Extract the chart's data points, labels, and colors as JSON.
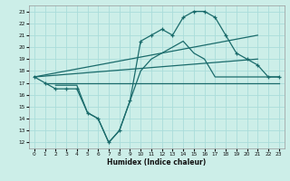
{
  "xlabel": "Humidex (Indice chaleur)",
  "bg_color": "#cceee8",
  "grid_color": "#aaddda",
  "line_color": "#1a6b6b",
  "xlim": [
    -0.5,
    23.5
  ],
  "ylim": [
    11.5,
    23.5
  ],
  "xticks": [
    0,
    1,
    2,
    3,
    4,
    5,
    6,
    7,
    8,
    9,
    10,
    11,
    12,
    13,
    14,
    15,
    16,
    17,
    18,
    19,
    20,
    21,
    22,
    23
  ],
  "yticks": [
    12,
    13,
    14,
    15,
    16,
    17,
    18,
    19,
    20,
    21,
    22,
    23
  ],
  "series_zigzag": {
    "x": [
      0,
      1,
      2,
      3,
      4,
      5,
      6,
      7,
      8,
      9,
      10,
      11,
      12,
      13,
      14,
      15,
      16,
      17,
      18,
      19,
      20,
      21,
      22,
      23
    ],
    "y": [
      17.5,
      17.0,
      16.5,
      16.5,
      16.5,
      14.5,
      14.0,
      12.0,
      13.0,
      15.5,
      20.5,
      21.0,
      21.5,
      21.0,
      22.5,
      23.0,
      23.0,
      22.5,
      21.0,
      19.5,
      19.0,
      18.5,
      17.5,
      17.5
    ]
  },
  "series_lin_steep": {
    "x": [
      0,
      21
    ],
    "y": [
      17.5,
      21.0
    ]
  },
  "series_lin_mid": {
    "x": [
      0,
      21
    ],
    "y": [
      17.5,
      19.0
    ]
  },
  "series_flat": {
    "x": [
      1,
      23
    ],
    "y": [
      17.0,
      17.0
    ]
  },
  "series_curve": {
    "x": [
      2,
      3,
      4,
      5,
      6,
      7,
      8,
      9,
      10,
      11,
      12,
      13,
      14,
      15,
      16,
      17,
      18,
      19,
      20,
      21,
      22,
      23
    ],
    "y": [
      16.8,
      16.8,
      16.8,
      14.5,
      14.0,
      12.0,
      13.0,
      15.5,
      18.0,
      19.0,
      19.5,
      20.0,
      20.5,
      19.5,
      19.0,
      17.5,
      17.5,
      17.5,
      17.5,
      17.5,
      17.5,
      17.5
    ]
  }
}
